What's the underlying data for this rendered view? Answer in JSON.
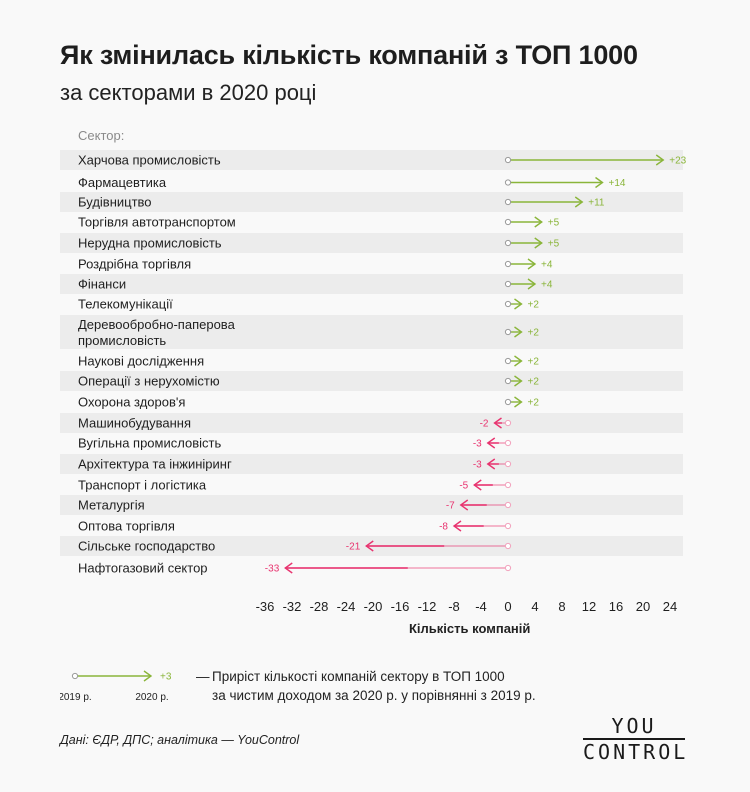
{
  "header": {
    "title": "Як змінилась кількість компаній з ТОП 1000",
    "subtitle": "за секторами в 2020 році"
  },
  "chart_data": {
    "type": "arrow",
    "title": "Як змінилась кількість компаній з ТОП 1000",
    "subtitle": "за секторами в 2020 році",
    "category_axis_label": "Сектор:",
    "xlabel": "Кількість компаній",
    "xlim": [
      -36,
      24
    ],
    "xticks": [
      -36,
      -32,
      -28,
      -24,
      -20,
      -16,
      -12,
      -8,
      -4,
      0,
      4,
      8,
      12,
      16,
      20,
      24
    ],
    "colors": {
      "positive": "#8ab53a",
      "negative": "#e8336f",
      "stripe": "#ececec",
      "baseline_dot": "#9a9a9a"
    },
    "categories": [
      "Харчова промисловість",
      "Фармацевтика",
      "Будівництво",
      "Торгівля автотранспортом",
      "Нерудна промисловість",
      "Роздрібна торгівля",
      "Фінанси",
      "Телекомунікації",
      "Деревообробно-паперова промисловість",
      "Наукові дослідження",
      "Операції з нерухомістю",
      "Охорона здоров'я",
      "Машинобудування",
      "Вугільна промисловість",
      "Архітектура та інжиніринг",
      "Транспорт і логістика",
      "Металургія",
      "Оптова торгівля",
      "Сільське господарство",
      "Нафтогазовий сектор"
    ],
    "values": [
      23,
      14,
      11,
      5,
      5,
      4,
      4,
      2,
      2,
      2,
      2,
      2,
      -2,
      -3,
      -3,
      -5,
      -7,
      -8,
      -21,
      -33
    ],
    "value_labels": [
      "+23",
      "+14",
      "+11",
      "+5",
      "+5",
      "+4",
      "+4",
      "+2",
      "+2",
      "+2",
      "+2",
      "+2",
      "-2",
      "-3",
      "-3",
      "-5",
      "-7",
      "-8",
      "-21",
      "-33"
    ]
  },
  "legend": {
    "sample_value_label": "+3",
    "year_from": "2019 р.",
    "year_to": "2020 р.",
    "dash": "—",
    "line1": "Приріст кількості компаній сектору в ТОП 1000",
    "line2": "за чистим доходом за 2020 р. у порівнянні з 2019 р."
  },
  "footer": {
    "source": "Дані: ЄДР, ДПС; аналітика — YouControl",
    "logo_top": "YOU",
    "logo_bottom": "CONTROL"
  }
}
